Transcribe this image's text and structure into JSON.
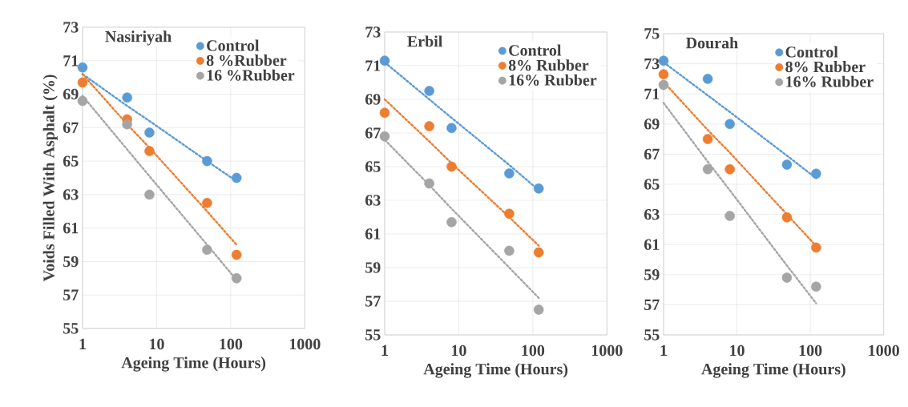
{
  "chart_data": [
    {
      "type": "scatter",
      "title": "Nasiriyah",
      "xlabel": "Ageing Time (Hours)",
      "ylabel": "Voids Filled With Asphalt (%)",
      "x": [
        1,
        4,
        8,
        48,
        120
      ],
      "log": "x",
      "xlim": [
        1,
        1000
      ],
      "xticks": [
        1,
        10,
        100,
        1000
      ],
      "ylim": [
        55,
        73
      ],
      "yticks": [
        55,
        57,
        59,
        61,
        63,
        65,
        67,
        69,
        71,
        73
      ],
      "grid": true,
      "legend": "top right",
      "marker": "circle",
      "series": [
        {
          "name": "Control",
          "color": "#5b9bd5",
          "values": [
            70.6,
            68.8,
            66.7,
            65.0,
            64.0
          ]
        },
        {
          "name": "8 %Rubber",
          "color": "#ed7d31",
          "values": [
            69.7,
            67.5,
            65.6,
            62.5,
            59.4
          ]
        },
        {
          "name": "16 %Rubber",
          "color": "#a5a5a5",
          "values": [
            68.6,
            67.2,
            63.0,
            59.7,
            58.0
          ]
        },
        {
          "type": "line",
          "marker": "none",
          "line_style": "dotted",
          "color": "#5b9bd5",
          "values": [
            70.2,
            68.3,
            67.4,
            65.0,
            63.8
          ]
        },
        {
          "type": "line",
          "marker": "none",
          "line_style": "dotted",
          "color": "#ed7d31",
          "values": [
            70.2,
            67.2,
            65.8,
            62.0,
            60.0
          ]
        },
        {
          "type": "line",
          "marker": "none",
          "line_style": "dotted",
          "color": "#a5a5a5",
          "values": [
            68.9,
            65.7,
            64.1,
            60.0,
            57.9
          ]
        }
      ]
    },
    {
      "type": "scatter",
      "title": "Erbil",
      "xlabel": "Ageing Time (Hours)",
      "x": [
        1,
        4,
        8,
        48,
        120
      ],
      "log": "x",
      "xlim": [
        1,
        1000
      ],
      "xticks": [
        1,
        10,
        100,
        1000
      ],
      "ylim": [
        55,
        73
      ],
      "yticks": [
        55,
        57,
        59,
        61,
        63,
        65,
        67,
        69,
        71,
        73
      ],
      "grid": true,
      "legend": "top right",
      "marker": "circle",
      "series": [
        {
          "name": "Control",
          "color": "#5b9bd5",
          "values": [
            71.3,
            69.5,
            67.3,
            64.6,
            63.7
          ]
        },
        {
          "name": "8% Rubber",
          "color": "#ed7d31",
          "values": [
            68.2,
            67.4,
            65.0,
            62.2,
            59.9
          ]
        },
        {
          "name": "16% Rubber",
          "color": "#a5a5a5",
          "values": [
            66.8,
            64.0,
            61.7,
            60.0,
            56.5
          ]
        },
        {
          "type": "line",
          "marker": "none",
          "line_style": "dotted",
          "color": "#5b9bd5",
          "values": [
            71.2,
            69.0,
            67.9,
            65.1,
            63.6
          ]
        },
        {
          "type": "line",
          "marker": "none",
          "line_style": "dotted",
          "color": "#ed7d31",
          "values": [
            69.0,
            66.5,
            65.2,
            62.0,
            60.3
          ]
        },
        {
          "type": "line",
          "marker": "none",
          "line_style": "dotted",
          "color": "#a5a5a5",
          "values": [
            66.6,
            63.9,
            62.5,
            59.0,
            57.2
          ]
        }
      ]
    },
    {
      "type": "scatter",
      "title": "Dourah",
      "xlabel": "Ageing Time (Hours)",
      "x": [
        1,
        4,
        8,
        48,
        120
      ],
      "log": "x",
      "xlim": [
        1,
        1000
      ],
      "xticks": [
        1,
        10,
        100,
        1000
      ],
      "ylim": [
        55,
        75
      ],
      "yticks": [
        55,
        57,
        59,
        61,
        63,
        65,
        67,
        69,
        71,
        73,
        75
      ],
      "grid": true,
      "legend": "top right",
      "marker": "circle",
      "series": [
        {
          "name": "Control",
          "color": "#5b9bd5",
          "values": [
            73.2,
            72.0,
            69.0,
            66.3,
            65.7
          ]
        },
        {
          "name": "8% Rubber",
          "color": "#ed7d31",
          "values": [
            72.3,
            68.0,
            66.0,
            62.8,
            60.8
          ]
        },
        {
          "name": "16% Rubber",
          "color": "#a5a5a5",
          "values": [
            71.6,
            66.0,
            62.9,
            58.8,
            58.2
          ]
        },
        {
          "type": "line",
          "marker": "none",
          "line_style": "dotted",
          "color": "#5b9bd5",
          "values": [
            73.1,
            70.9,
            69.8,
            66.9,
            65.4
          ]
        },
        {
          "type": "line",
          "marker": "none",
          "line_style": "dotted",
          "color": "#ed7d31",
          "values": [
            71.8,
            68.6,
            67.1,
            63.0,
            60.9
          ]
        },
        {
          "type": "line",
          "marker": "none",
          "line_style": "dotted",
          "color": "#a5a5a5",
          "values": [
            70.4,
            66.5,
            64.6,
            59.6,
            57.1
          ]
        }
      ]
    }
  ]
}
